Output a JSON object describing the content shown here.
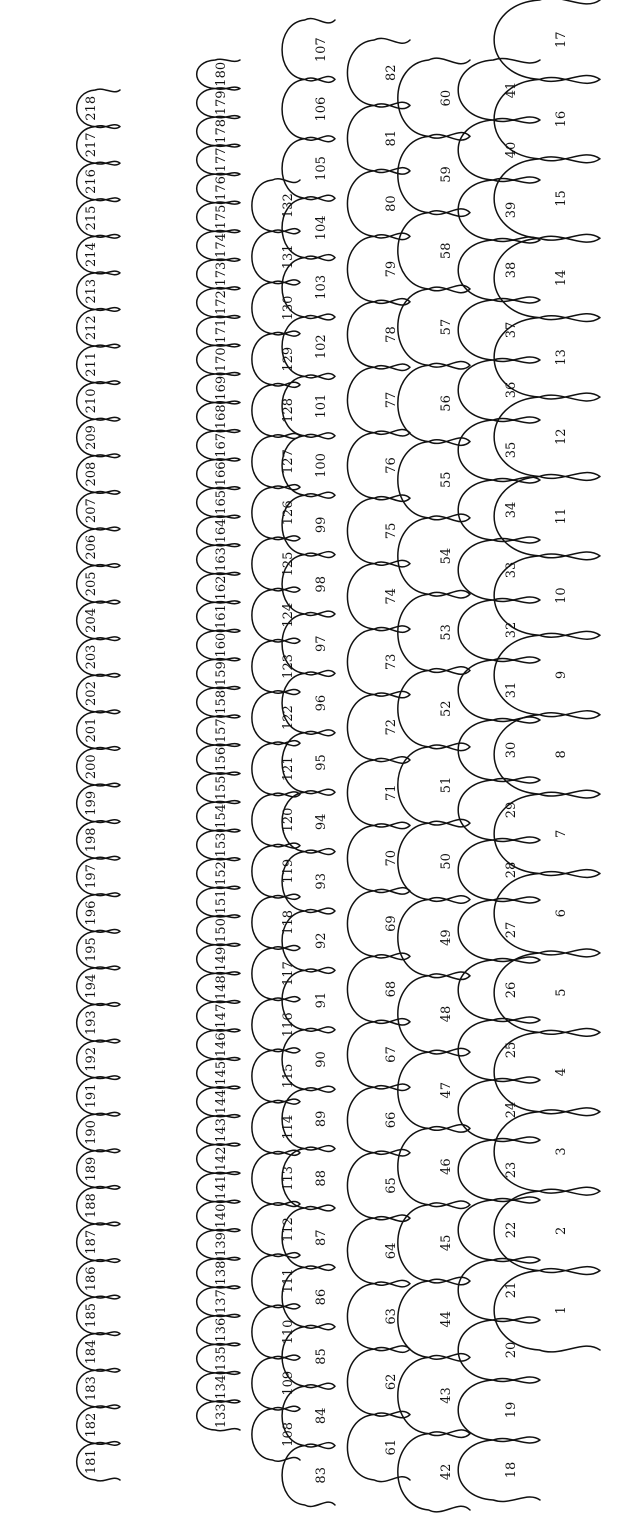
{
  "diagram": {
    "type": "numbered-outline-shapes",
    "stroke_color": "#111111",
    "background": "#ffffff",
    "label_orientation": "rotated 90 degrees counter-clockwise",
    "rows": [
      {
        "name": "row-1",
        "labels": [
          "1",
          "2",
          "3",
          "4",
          "5",
          "6",
          "7",
          "8",
          "9",
          "10",
          "11",
          "12",
          "13",
          "14",
          "15",
          "16",
          "17"
        ]
      },
      {
        "name": "row-2",
        "labels": [
          "18",
          "19",
          "20",
          "21",
          "22",
          "23",
          "24",
          "25",
          "26",
          "27",
          "28",
          "29",
          "30",
          "31",
          "32",
          "33",
          "34",
          "35",
          "36",
          "37",
          "38",
          "39",
          "40",
          "41"
        ]
      },
      {
        "name": "row-3",
        "labels": [
          "42",
          "43",
          "44",
          "45",
          "46",
          "47",
          "48",
          "49",
          "50",
          "51",
          "52",
          "53",
          "54",
          "55",
          "56",
          "57",
          "58",
          "59",
          "60"
        ]
      },
      {
        "name": "row-4",
        "labels": [
          "61",
          "62",
          "63",
          "64",
          "65",
          "66",
          "67",
          "68",
          "69",
          "70",
          "71",
          "72",
          "73",
          "74",
          "75",
          "76",
          "77",
          "78",
          "79",
          "80",
          "81",
          "82"
        ]
      },
      {
        "name": "row-5",
        "labels": [
          "83",
          "84",
          "85",
          "86",
          "87",
          "88",
          "89",
          "90",
          "91",
          "92",
          "93",
          "94",
          "95",
          "96",
          "97",
          "98",
          "99",
          "100",
          "101",
          "102",
          "103",
          "104",
          "105",
          "106",
          "107"
        ]
      },
      {
        "name": "row-6",
        "labels": [
          "108",
          "109",
          "110",
          "111",
          "112",
          "113",
          "114",
          "115",
          "116",
          "117",
          "118",
          "119",
          "120",
          "121",
          "122",
          "123",
          "124",
          "125",
          "126",
          "127",
          "128",
          "129",
          "130",
          "131",
          "132"
        ]
      },
      {
        "name": "row-7",
        "labels": [
          "133",
          "134",
          "135",
          "136",
          "137",
          "138",
          "139",
          "140",
          "141",
          "142",
          "143",
          "144",
          "145",
          "146",
          "147",
          "148",
          "149",
          "150",
          "151",
          "152",
          "153",
          "154",
          "155",
          "156",
          "157",
          "158",
          "159",
          "160",
          "161",
          "162",
          "163",
          "164",
          "165",
          "166",
          "167",
          "168",
          "169",
          "170",
          "171",
          "172",
          "173",
          "174",
          "175",
          "176",
          "177",
          "178",
          "179",
          "180"
        ]
      },
      {
        "name": "row-8",
        "labels": [
          "181",
          "182",
          "183",
          "184",
          "185",
          "186",
          "187",
          "188",
          "189",
          "190",
          "191",
          "192",
          "193",
          "194",
          "195",
          "196",
          "197",
          "198",
          "199",
          "200",
          "201",
          "202",
          "203",
          "204",
          "205",
          "206",
          "207",
          "208",
          "209",
          "210",
          "211",
          "212",
          "213",
          "214",
          "215",
          "216",
          "217",
          "218"
        ]
      }
    ]
  }
}
